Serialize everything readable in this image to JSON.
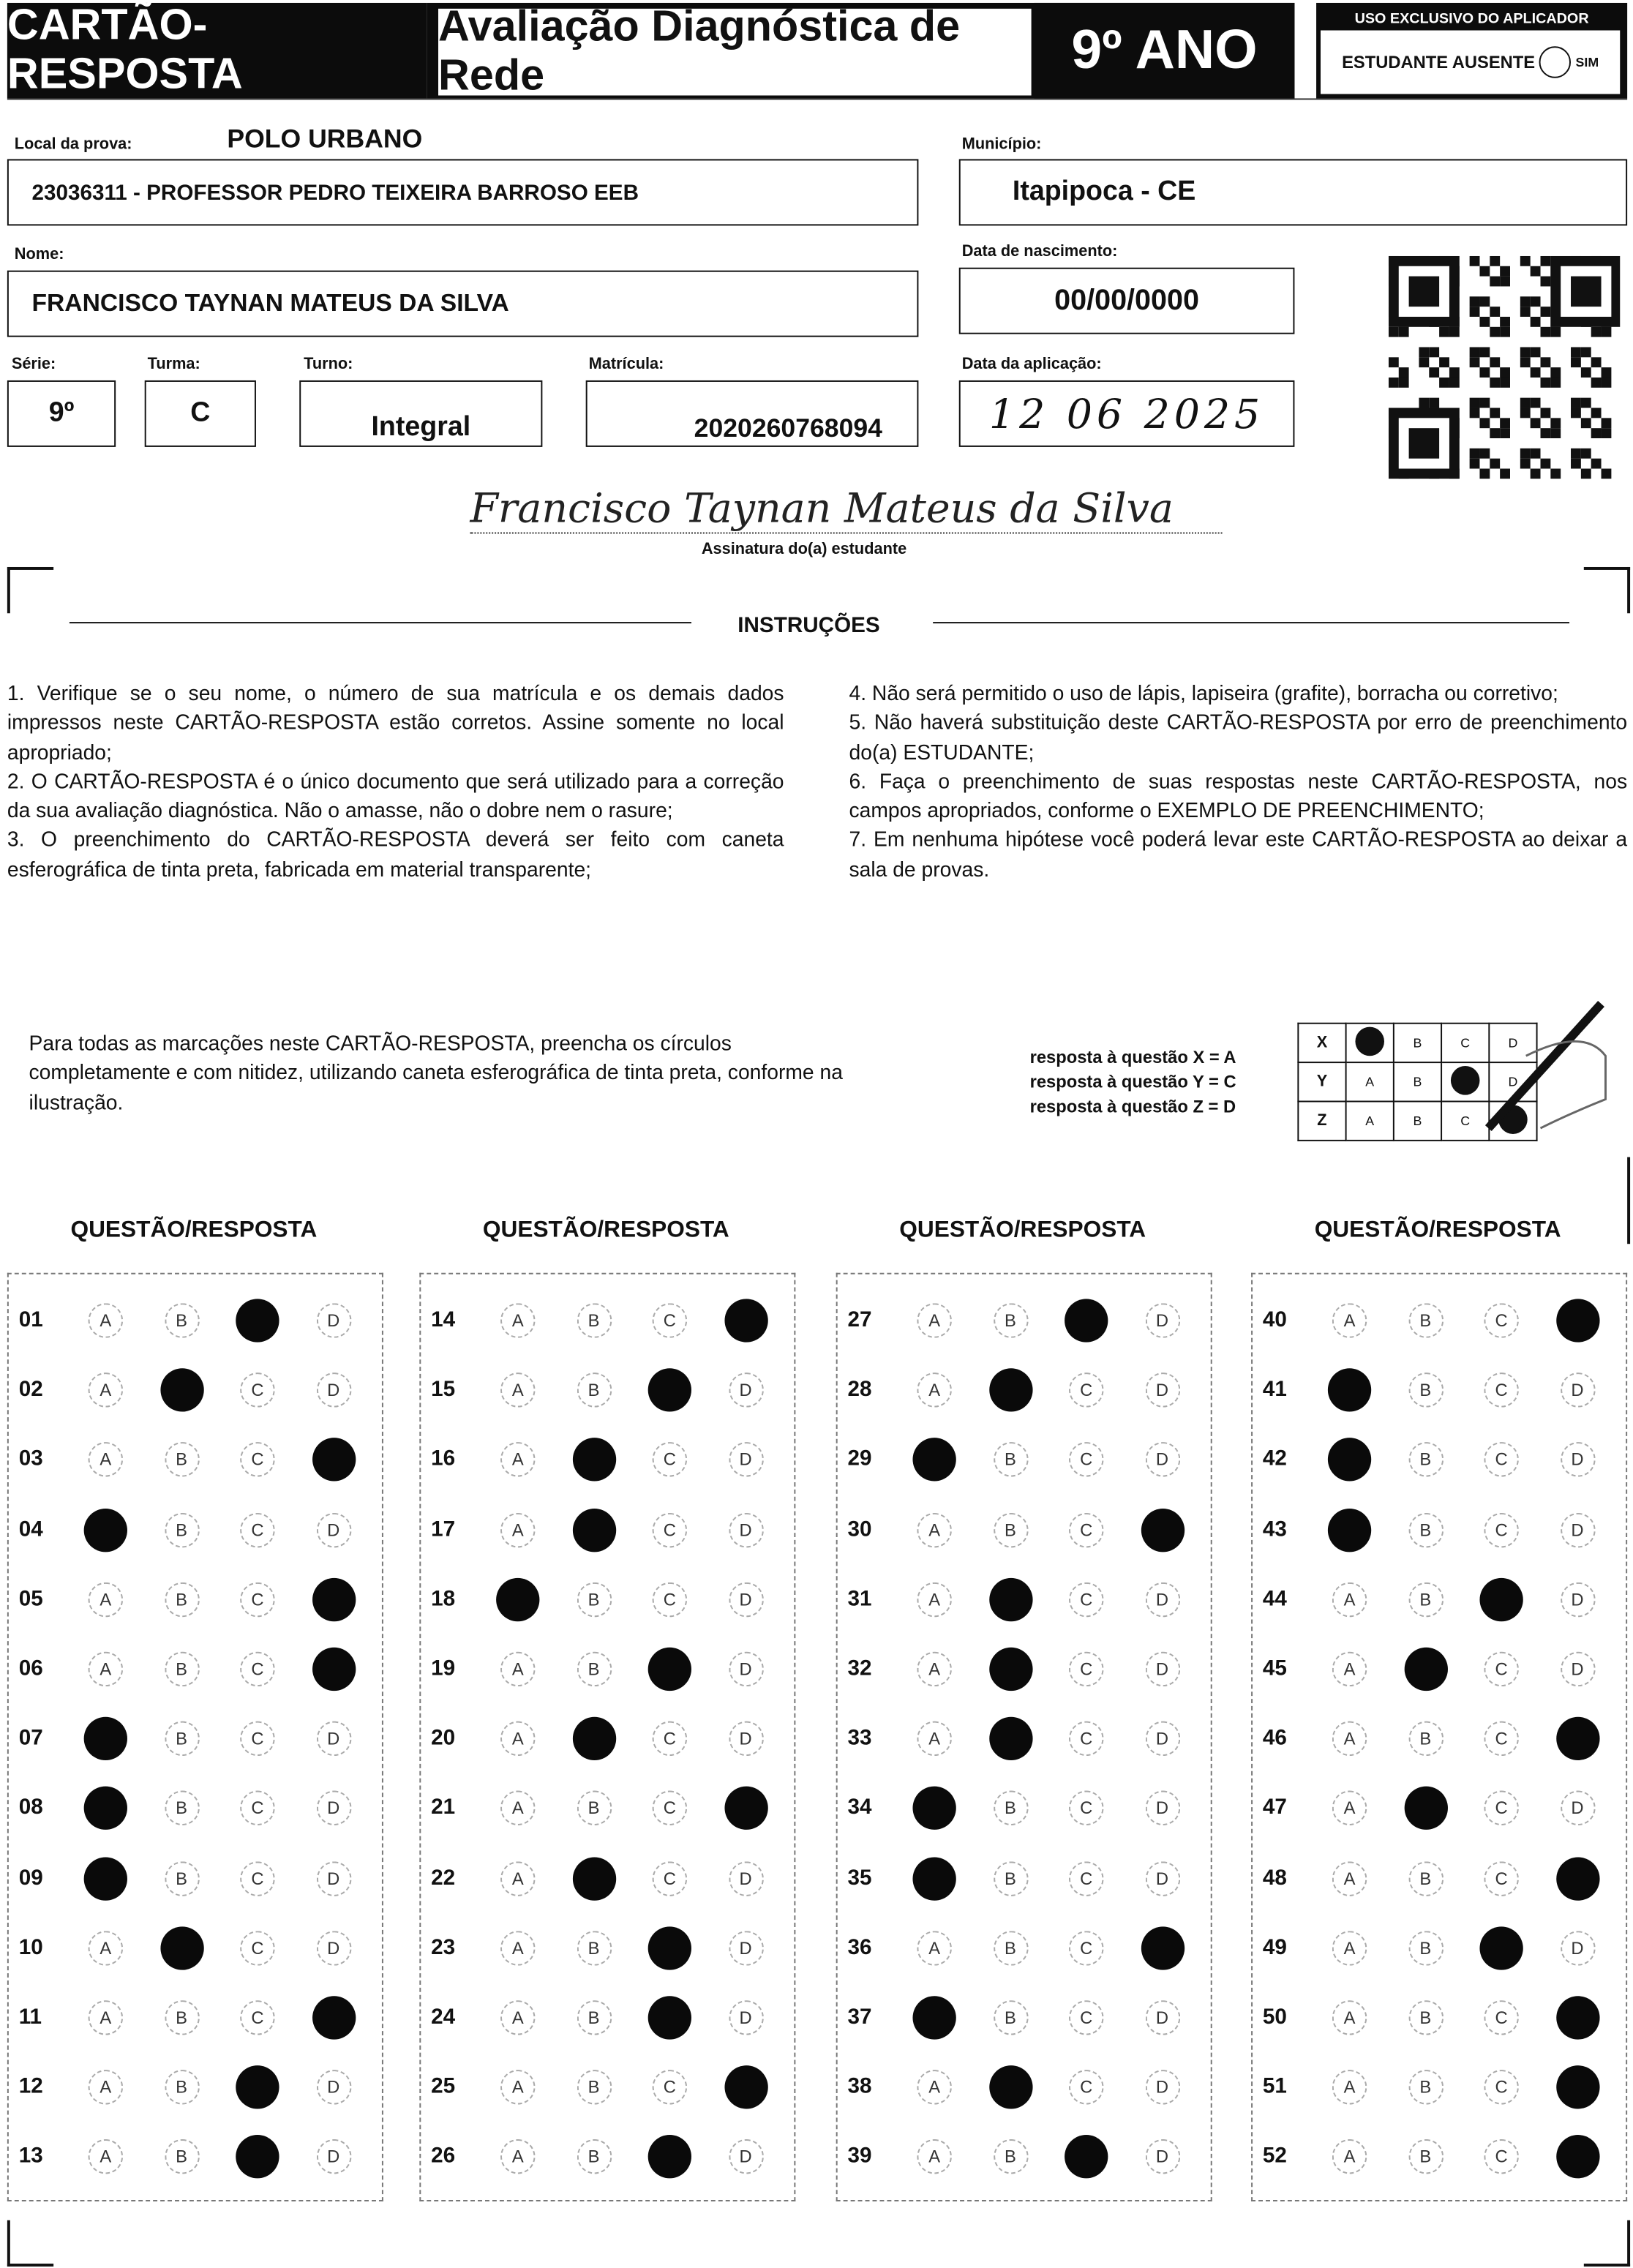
{
  "header": {
    "title": "CARTÃO-RESPOSTA",
    "subtitle": "Avaliação Diagnóstica de Rede",
    "grade": "9º ANO",
    "applicator_label": "USO EXCLUSIVO DO APLICADOR",
    "absent_label": "ESTUDANTE AUSENTE",
    "absent_option": "SIM"
  },
  "fields": {
    "local_label": "Local da prova:",
    "local_value": "POLO URBANO",
    "school": "23036311 - PROFESSOR PEDRO TEIXEIRA BARROSO EEB",
    "municipio_label": "Município:",
    "municipio": "Itapipoca - CE",
    "nome_label": "Nome:",
    "nome": "FRANCISCO TAYNAN MATEUS DA SILVA",
    "nasc_label": "Data de nascimento:",
    "nasc": "00/00/0000",
    "serie_label": "Série:",
    "serie": "9º",
    "turma_label": "Turma:",
    "turma": "C",
    "turno_label": "Turno:",
    "turno": "Integral",
    "matricula_label": "Matrícula:",
    "matricula": "2020260768094",
    "aplic_label": "Data da aplicação:",
    "aplic": "12 06 2025",
    "signature": "Francisco Taynan Mateus da Silva",
    "signature_label": "Assinatura do(a) estudante"
  },
  "instructions": {
    "title": "INSTRUÇÕES",
    "left": [
      "1. Verifique se o seu nome, o número de sua matrícula e os demais dados impressos neste CARTÃO-RESPOSTA estão corretos. Assine somente no local apropriado;",
      "2. O CARTÃO-RESPOSTA é o único documento que será utilizado para a correção da sua avaliação diagnóstica. Não o amasse, não o dobre nem o rasure;",
      "3. O preenchimento do CARTÃO-RESPOSTA deverá ser feito com caneta esferográfica de tinta preta, fabricada em material transparente;"
    ],
    "right": [
      "4. Não será permitido o uso de lápis, lapiseira (grafite), borracha ou corretivo;",
      "5. Não haverá substituição deste CARTÃO-RESPOSTA por erro de preenchimento do(a) ESTUDANTE;",
      "6. Faça o preenchimento de suas respostas neste CARTÃO-RESPOSTA, nos campos apropriados, conforme o EXEMPLO DE PREENCHIMENTO;",
      "7. Em nenhuma hipótese você poderá levar este CARTÃO-RESPOSTA ao deixar a sala de provas."
    ]
  },
  "fill_note": "Para todas as marcações neste CARTÃO-RESPOSTA, preencha os círculos completamente e com nitidez, utilizando caneta esferográfica de tinta preta, conforme na ilustração.",
  "example": {
    "lines": [
      "resposta à questão X = A",
      "resposta à questão Y = C",
      "resposta à questão Z = D"
    ],
    "rows": [
      {
        "q": "X",
        "answer": "A"
      },
      {
        "q": "Y",
        "answer": "C"
      },
      {
        "q": "Z",
        "answer": "D"
      }
    ]
  },
  "options": [
    "A",
    "B",
    "C",
    "D"
  ],
  "column_header": "QUESTÃO/RESPOSTA",
  "answers": [
    {
      "q": "01",
      "a": "C"
    },
    {
      "q": "02",
      "a": "B"
    },
    {
      "q": "03",
      "a": "D"
    },
    {
      "q": "04",
      "a": "A"
    },
    {
      "q": "05",
      "a": "D"
    },
    {
      "q": "06",
      "a": "D"
    },
    {
      "q": "07",
      "a": "A"
    },
    {
      "q": "08",
      "a": "A"
    },
    {
      "q": "09",
      "a": "A"
    },
    {
      "q": "10",
      "a": "B"
    },
    {
      "q": "11",
      "a": "D"
    },
    {
      "q": "12",
      "a": "C"
    },
    {
      "q": "13",
      "a": "C"
    },
    {
      "q": "14",
      "a": "D"
    },
    {
      "q": "15",
      "a": "C"
    },
    {
      "q": "16",
      "a": "B"
    },
    {
      "q": "17",
      "a": "B"
    },
    {
      "q": "18",
      "a": "A"
    },
    {
      "q": "19",
      "a": "C"
    },
    {
      "q": "20",
      "a": "B"
    },
    {
      "q": "21",
      "a": "D"
    },
    {
      "q": "22",
      "a": "B"
    },
    {
      "q": "23",
      "a": "C"
    },
    {
      "q": "24",
      "a": "C"
    },
    {
      "q": "25",
      "a": "D"
    },
    {
      "q": "26",
      "a": "C"
    },
    {
      "q": "27",
      "a": "C"
    },
    {
      "q": "28",
      "a": "B"
    },
    {
      "q": "29",
      "a": "A"
    },
    {
      "q": "30",
      "a": "D"
    },
    {
      "q": "31",
      "a": "B"
    },
    {
      "q": "32",
      "a": "B"
    },
    {
      "q": "33",
      "a": "B"
    },
    {
      "q": "34",
      "a": "A"
    },
    {
      "q": "35",
      "a": "A"
    },
    {
      "q": "36",
      "a": "D"
    },
    {
      "q": "37",
      "a": "A"
    },
    {
      "q": "38",
      "a": "B"
    },
    {
      "q": "39",
      "a": "C"
    },
    {
      "q": "40",
      "a": "D"
    },
    {
      "q": "41",
      "a": "A"
    },
    {
      "q": "42",
      "a": "A"
    },
    {
      "q": "43",
      "a": "A"
    },
    {
      "q": "44",
      "a": "C"
    },
    {
      "q": "45",
      "a": "B"
    },
    {
      "q": "46",
      "a": "D"
    },
    {
      "q": "47",
      "a": "B"
    },
    {
      "q": "48",
      "a": "D"
    },
    {
      "q": "49",
      "a": "C"
    },
    {
      "q": "50",
      "a": "D"
    },
    {
      "q": "51",
      "a": "D"
    },
    {
      "q": "52",
      "a": "D"
    }
  ]
}
